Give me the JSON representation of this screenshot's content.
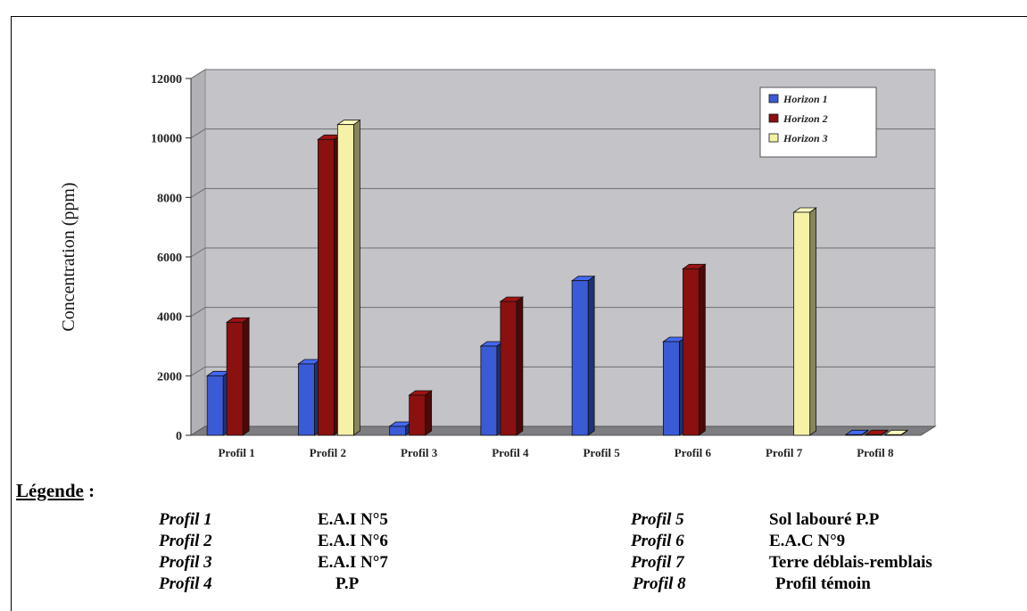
{
  "chart_data": {
    "type": "bar",
    "ylabel": "Concentration (ppm)",
    "ylim": [
      0,
      12000
    ],
    "yticks": [
      "0",
      "2000",
      "4000",
      "6000",
      "8000",
      "10000",
      "12000"
    ],
    "categories": [
      "Profil 1",
      "Profil 2",
      "Profil 3",
      "Profil 4",
      "Profil 5",
      "Profil 6",
      "Profil 7",
      "Profil 8"
    ],
    "series": [
      {
        "name": "Horizon 1",
        "color": "#3b5bd6",
        "values": [
          2000,
          2400,
          300,
          3000,
          5200,
          3150,
          null,
          20
        ]
      },
      {
        "name": "Horizon 2",
        "color": "#8b1010",
        "values": [
          3800,
          9950,
          1350,
          4500,
          null,
          5600,
          null,
          20
        ]
      },
      {
        "name": "Horizon 3",
        "color": "#f5f2a8",
        "values": [
          null,
          10450,
          null,
          null,
          null,
          null,
          7500,
          20
        ]
      }
    ],
    "grid": true,
    "legend_position": "top-right"
  },
  "legend_block": {
    "title_underlined": "Légende",
    "title_suffix": " :",
    "rows": [
      {
        "key": "Profil 1",
        "desc": "E.A.I N°5"
      },
      {
        "key": "Profil 2",
        "desc": "E.A.I N°6"
      },
      {
        "key": "Profil 3",
        "desc": "E.A.I N°7"
      },
      {
        "key": "Profil 4",
        "desc": "P.P"
      },
      {
        "key": "Profil 5",
        "desc": "Sol labouré P.P"
      },
      {
        "key": "Profil 6",
        "desc": "E.A.C N°9"
      },
      {
        "key": "Profil 7",
        "desc": "Terre déblais-remblais"
      },
      {
        "key": "Profil 8",
        "desc": "Profil témoin"
      }
    ]
  }
}
